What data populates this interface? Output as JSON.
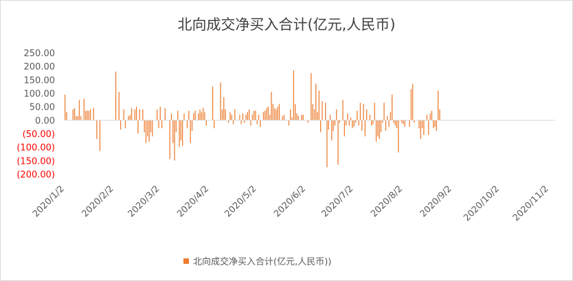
{
  "chart_data": {
    "type": "bar",
    "title": "北向成交净买入合计(亿元,人民币)",
    "legend": "北向成交净买入合计(亿元,人民币))",
    "legend_position": "bottom",
    "bar_color": "#ED7D31",
    "positive_label_color": "#595959",
    "negative_label_color": "#FF0000",
    "ylim": [
      -200,
      250
    ],
    "y_ticks": [
      {
        "value": 250,
        "label": "250.00"
      },
      {
        "value": 200,
        "label": "200.00"
      },
      {
        "value": 150,
        "label": "150.00"
      },
      {
        "value": 100,
        "label": "100.00"
      },
      {
        "value": 50,
        "label": "50.00"
      },
      {
        "value": 0,
        "label": "0.00"
      },
      {
        "value": -50,
        "label": "(50.00)"
      },
      {
        "value": -100,
        "label": "(100.00)"
      },
      {
        "value": -150,
        "label": "(150.00)"
      },
      {
        "value": -200,
        "label": "(200.00)"
      }
    ],
    "x_start": "2020/1/2",
    "x_end": "2020/11/5",
    "x_ticks": [
      "2020/1/2",
      "2020/2/2",
      "2020/3/2",
      "2020/4/2",
      "2020/5/2",
      "2020/6/2",
      "2020/7/2",
      "2020/8/2",
      "2020/9/2",
      "2020/10/2",
      "2020/11/2"
    ],
    "grid": false,
    "series": [
      {
        "values": [
          [
            0,
            95
          ],
          [
            1,
            30
          ],
          [
            5,
            40
          ],
          [
            6,
            45
          ],
          [
            7,
            15
          ],
          [
            8,
            15
          ],
          [
            9,
            75
          ],
          [
            10,
            15
          ],
          [
            12,
            80
          ],
          [
            13,
            35
          ],
          [
            14,
            35
          ],
          [
            15,
            35
          ],
          [
            16,
            40
          ],
          [
            18,
            45
          ],
          [
            20,
            -70
          ],
          [
            22,
            -115
          ],
          [
            32,
            180
          ],
          [
            34,
            105
          ],
          [
            35,
            -35
          ],
          [
            37,
            40
          ],
          [
            38,
            -30
          ],
          [
            40,
            15
          ],
          [
            41,
            20
          ],
          [
            42,
            45
          ],
          [
            44,
            40
          ],
          [
            45,
            50
          ],
          [
            46,
            -50
          ],
          [
            47,
            40
          ],
          [
            49,
            40
          ],
          [
            50,
            -45
          ],
          [
            51,
            -85
          ],
          [
            52,
            -60
          ],
          [
            53,
            -80
          ],
          [
            54,
            -45
          ],
          [
            55,
            -60
          ],
          [
            58,
            40
          ],
          [
            59,
            -30
          ],
          [
            60,
            50
          ],
          [
            61,
            -30
          ],
          [
            63,
            45
          ],
          [
            66,
            -145
          ],
          [
            67,
            25
          ],
          [
            68,
            -85
          ],
          [
            69,
            -150
          ],
          [
            70,
            -45
          ],
          [
            71,
            35
          ],
          [
            72,
            -100
          ],
          [
            73,
            -75
          ],
          [
            74,
            -95
          ],
          [
            75,
            25
          ],
          [
            77,
            -30
          ],
          [
            78,
            35
          ],
          [
            79,
            -85
          ],
          [
            80,
            -40
          ],
          [
            81,
            25
          ],
          [
            82,
            35
          ],
          [
            84,
            25
          ],
          [
            85,
            40
          ],
          [
            86,
            30
          ],
          [
            87,
            45
          ],
          [
            88,
            30
          ],
          [
            89,
            -20
          ],
          [
            93,
            125
          ],
          [
            94,
            -30
          ],
          [
            98,
            140
          ],
          [
            99,
            40
          ],
          [
            100,
            85
          ],
          [
            101,
            40
          ],
          [
            103,
            -10
          ],
          [
            104,
            30
          ],
          [
            105,
            20
          ],
          [
            106,
            -15
          ],
          [
            107,
            40
          ],
          [
            110,
            20
          ],
          [
            111,
            -15
          ],
          [
            112,
            25
          ],
          [
            113,
            -10
          ],
          [
            114,
            20
          ],
          [
            115,
            30
          ],
          [
            116,
            40
          ],
          [
            117,
            -20
          ],
          [
            118,
            20
          ],
          [
            119,
            35
          ],
          [
            120,
            35
          ],
          [
            121,
            -15
          ],
          [
            122,
            20
          ],
          [
            123,
            -25
          ],
          [
            125,
            30
          ],
          [
            126,
            35
          ],
          [
            127,
            45
          ],
          [
            128,
            50
          ],
          [
            129,
            20
          ],
          [
            130,
            105
          ],
          [
            131,
            60
          ],
          [
            132,
            45
          ],
          [
            133,
            40
          ],
          [
            134,
            50
          ],
          [
            135,
            60
          ],
          [
            137,
            15
          ],
          [
            138,
            20
          ],
          [
            141,
            -20
          ],
          [
            142,
            40
          ],
          [
            143,
            10
          ],
          [
            144,
            185
          ],
          [
            145,
            60
          ],
          [
            146,
            25
          ],
          [
            147,
            15
          ],
          [
            149,
            20
          ],
          [
            150,
            20
          ],
          [
            153,
            -10
          ],
          [
            155,
            175
          ],
          [
            156,
            60
          ],
          [
            157,
            40
          ],
          [
            158,
            135
          ],
          [
            159,
            30
          ],
          [
            160,
            110
          ],
          [
            161,
            -45
          ],
          [
            162,
            70
          ],
          [
            164,
            65
          ],
          [
            165,
            -175
          ],
          [
            166,
            -35
          ],
          [
            167,
            20
          ],
          [
            168,
            -75
          ],
          [
            169,
            -40
          ],
          [
            170,
            -20
          ],
          [
            171,
            40
          ],
          [
            172,
            -165
          ],
          [
            173,
            -10
          ],
          [
            175,
            75
          ],
          [
            176,
            -60
          ],
          [
            177,
            -20
          ],
          [
            178,
            25
          ],
          [
            179,
            -20
          ],
          [
            180,
            10
          ],
          [
            181,
            -30
          ],
          [
            182,
            -25
          ],
          [
            183,
            -10
          ],
          [
            184,
            35
          ],
          [
            185,
            -20
          ],
          [
            186,
            65
          ],
          [
            187,
            -40
          ],
          [
            188,
            60
          ],
          [
            189,
            -60
          ],
          [
            190,
            40
          ],
          [
            192,
            20
          ],
          [
            193,
            -20
          ],
          [
            194,
            -15
          ],
          [
            195,
            65
          ],
          [
            196,
            -80
          ],
          [
            197,
            -60
          ],
          [
            198,
            -70
          ],
          [
            199,
            -45
          ],
          [
            200,
            -10
          ],
          [
            201,
            65
          ],
          [
            202,
            -40
          ],
          [
            203,
            15
          ],
          [
            204,
            -25
          ],
          [
            205,
            30
          ],
          [
            206,
            95
          ],
          [
            207,
            -10
          ],
          [
            208,
            -20
          ],
          [
            209,
            -30
          ],
          [
            210,
            -120
          ],
          [
            212,
            -10
          ],
          [
            213,
            -15
          ],
          [
            214,
            -25
          ],
          [
            217,
            -25
          ],
          [
            218,
            115
          ],
          [
            219,
            135
          ],
          [
            220,
            -10
          ],
          [
            223,
            -30
          ],
          [
            224,
            -70
          ],
          [
            225,
            -30
          ],
          [
            226,
            -55
          ],
          [
            228,
            20
          ],
          [
            229,
            -55
          ],
          [
            230,
            25
          ],
          [
            231,
            35
          ],
          [
            232,
            -30
          ],
          [
            233,
            -25
          ],
          [
            234,
            -40
          ],
          [
            235,
            110
          ],
          [
            236,
            40
          ]
        ]
      }
    ]
  }
}
